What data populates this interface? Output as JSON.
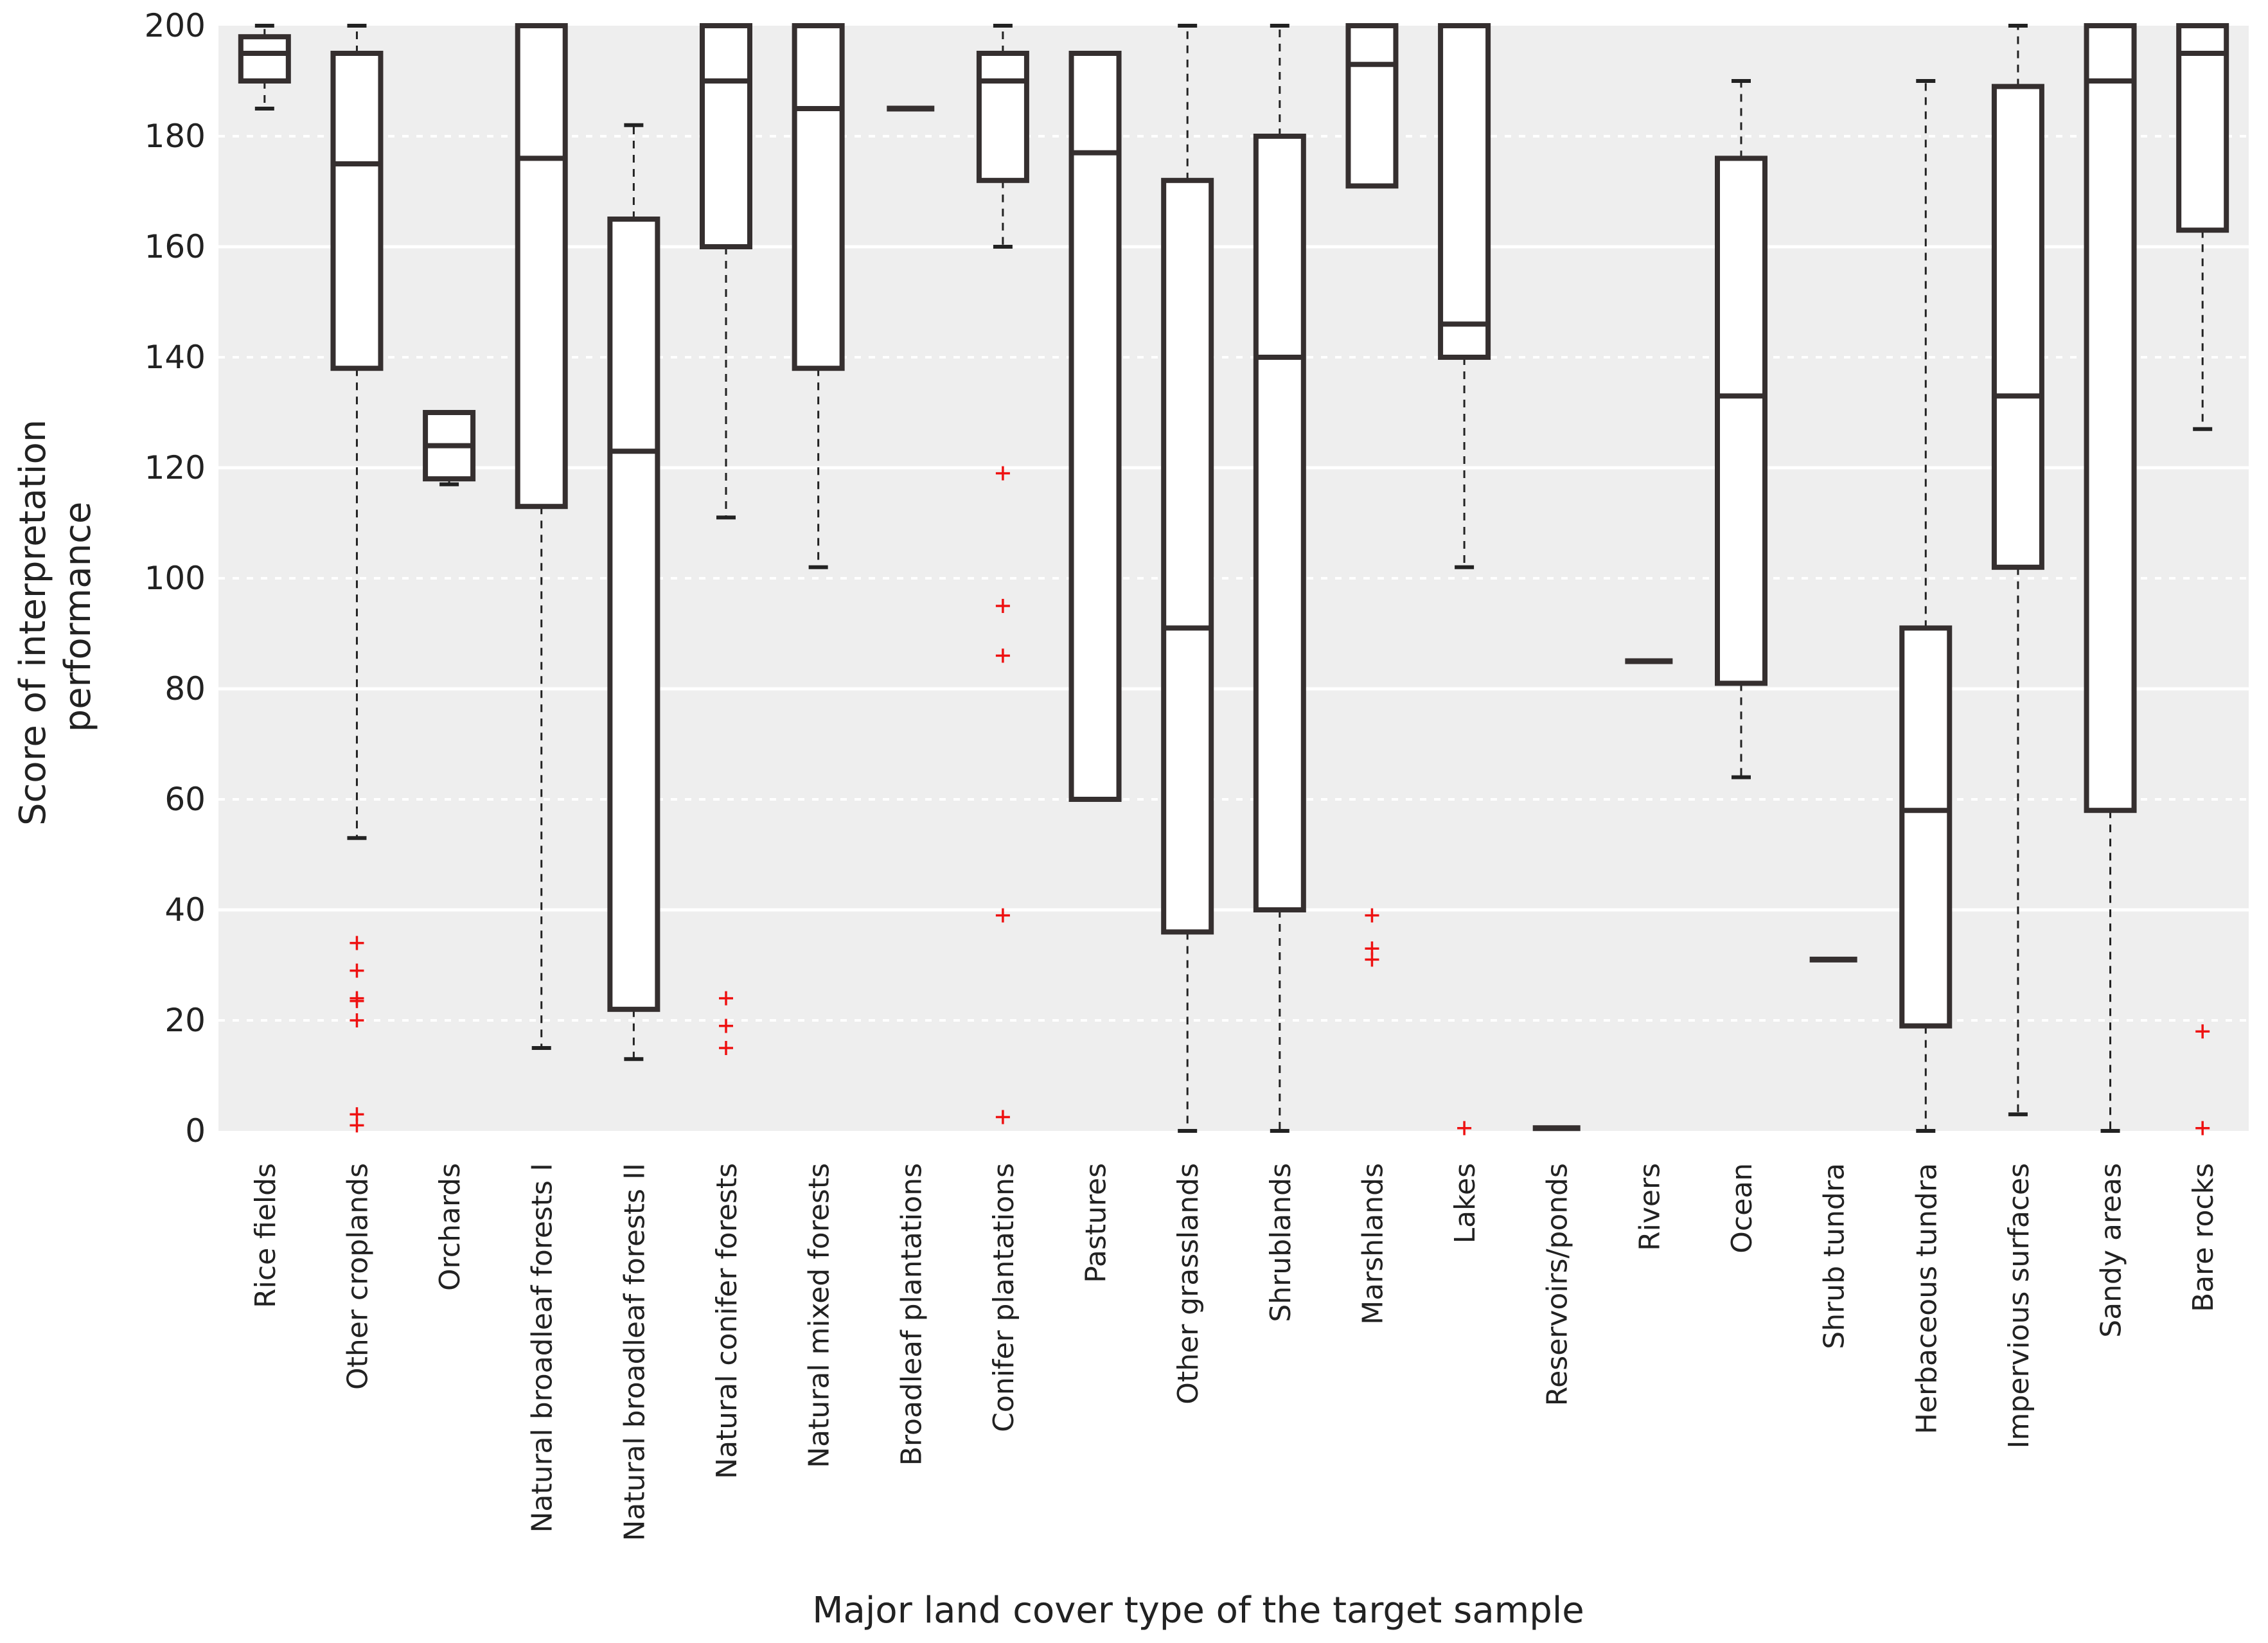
{
  "chart_data": {
    "type": "box",
    "xlabel": "Major land cover type of the target sample",
    "ylabel": [
      "Score of interpretation",
      "performance"
    ],
    "ylim": [
      0,
      200
    ],
    "yticks": [
      0,
      20,
      40,
      60,
      80,
      100,
      120,
      140,
      160,
      180,
      200
    ],
    "grid": {
      "major": true,
      "minor_dashed": true,
      "background": "#eeeeee"
    },
    "colors": {
      "box_stroke": "#352f2f",
      "box_fill": "#ffffff",
      "outlier": "#ee1111",
      "grid": "#ffffff"
    },
    "categories": [
      "Rice fields",
      "Other croplands",
      "Orchards",
      "Natural broadleaf forests I",
      "Natural broadleaf forests II",
      "Natural conifer forests",
      "Natural mixed forests",
      "Broadleaf plantations",
      "Conifer plantations",
      "Pastures",
      "Other grasslands",
      "Shrublands",
      "Marshlands",
      "Lakes",
      "Reservoirs/ponds",
      "Rivers",
      "Ocean",
      "Shrub tundra",
      "Herbaceous tundra",
      "Impervious surfaces",
      "Sandy areas",
      "Bare rocks"
    ],
    "boxes": [
      {
        "whislo": 185,
        "q1": 190,
        "med": 195,
        "q3": 198,
        "whishi": 200,
        "fliers": []
      },
      {
        "whislo": 53,
        "q1": 138,
        "med": 175,
        "q3": 195,
        "whishi": 200,
        "fliers": [
          34,
          29,
          24,
          23.5,
          20,
          3,
          1
        ]
      },
      {
        "whislo": 117,
        "q1": 118,
        "med": 124,
        "q3": 130,
        "whishi": 130,
        "fliers": []
      },
      {
        "whislo": 15,
        "q1": 113,
        "med": 176,
        "q3": 200,
        "whishi": 200,
        "fliers": []
      },
      {
        "whislo": 13,
        "q1": 22,
        "med": 123,
        "q3": 165,
        "whishi": 182,
        "fliers": []
      },
      {
        "whislo": 111,
        "q1": 160,
        "med": 190,
        "q3": 200,
        "whishi": 200,
        "fliers": [
          24,
          19,
          15
        ]
      },
      {
        "whislo": 102,
        "q1": 138,
        "med": 185,
        "q3": 200,
        "whishi": 200,
        "fliers": []
      },
      {
        "whislo": 185,
        "q1": 185,
        "med": 185,
        "q3": 185,
        "whishi": 185,
        "fliers": []
      },
      {
        "whislo": 160,
        "q1": 172,
        "med": 190,
        "q3": 195,
        "whishi": 200,
        "fliers": [
          119,
          95,
          86,
          39,
          2.5
        ]
      },
      {
        "whislo": 60,
        "q1": 60,
        "med": 177,
        "q3": 195,
        "whishi": 195,
        "fliers": []
      },
      {
        "whislo": 0,
        "q1": 36,
        "med": 91,
        "q3": 172,
        "whishi": 200,
        "fliers": []
      },
      {
        "whislo": 0,
        "q1": 40,
        "med": 140,
        "q3": 180,
        "whishi": 200,
        "fliers": []
      },
      {
        "whislo": 171,
        "q1": 171,
        "med": 193,
        "q3": 200,
        "whishi": 200,
        "fliers": [
          39,
          33,
          31
        ]
      },
      {
        "whislo": 102,
        "q1": 140,
        "med": 146,
        "q3": 200,
        "whishi": 200,
        "fliers": [
          0.5
        ]
      },
      {
        "whislo": 0.5,
        "q1": 0.5,
        "med": 0.5,
        "q3": 0.5,
        "whishi": 0.5,
        "fliers": []
      },
      {
        "whislo": 85,
        "q1": 85,
        "med": 85,
        "q3": 85,
        "whishi": 85,
        "fliers": []
      },
      {
        "whislo": 64,
        "q1": 81,
        "med": 133,
        "q3": 176,
        "whishi": 190,
        "fliers": []
      },
      {
        "whislo": 31,
        "q1": 31,
        "med": 31,
        "q3": 31,
        "whishi": 31,
        "fliers": []
      },
      {
        "whislo": 0,
        "q1": 19,
        "med": 58,
        "q3": 91,
        "whishi": 190,
        "fliers": []
      },
      {
        "whislo": 3,
        "q1": 102,
        "med": 133,
        "q3": 189,
        "whishi": 200,
        "fliers": []
      },
      {
        "whislo": 0,
        "q1": 58,
        "med": 190,
        "q3": 200,
        "whishi": 200,
        "fliers": []
      },
      {
        "whislo": 127,
        "q1": 163,
        "med": 195,
        "q3": 200,
        "whishi": 200,
        "fliers": [
          18,
          0.5
        ]
      }
    ]
  }
}
